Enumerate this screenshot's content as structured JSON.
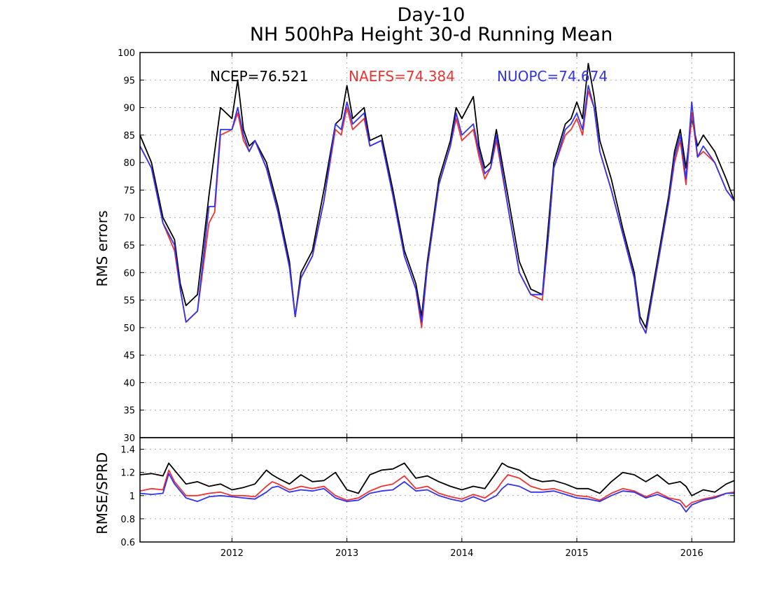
{
  "title_line1": "Day-10",
  "title_line2": "NH 500hPa Height 30-d Running Mean",
  "chart_data": [
    {
      "type": "line",
      "ylabel": "RMS errors",
      "ylim": [
        30,
        100
      ],
      "yticks": [
        30,
        35,
        40,
        45,
        50,
        55,
        60,
        65,
        70,
        75,
        80,
        85,
        90,
        95,
        100
      ],
      "xlim": [
        2011.2,
        2016.37
      ],
      "xticks": [
        2012,
        2013,
        2014,
        2015,
        2016
      ],
      "xtick_labels": [
        "2012",
        "2013",
        "2014",
        "2015",
        "2016"
      ],
      "grid": true,
      "x": [
        2011.2,
        2011.3,
        2011.4,
        2011.5,
        2011.55,
        2011.6,
        2011.7,
        2011.8,
        2011.85,
        2011.9,
        2012.0,
        2012.05,
        2012.1,
        2012.15,
        2012.2,
        2012.3,
        2012.4,
        2012.5,
        2012.55,
        2012.6,
        2012.7,
        2012.8,
        2012.9,
        2012.95,
        2013.0,
        2013.05,
        2013.15,
        2013.2,
        2013.3,
        2013.4,
        2013.5,
        2013.6,
        2013.65,
        2013.7,
        2013.8,
        2013.9,
        2013.95,
        2014.0,
        2014.1,
        2014.15,
        2014.2,
        2014.25,
        2014.3,
        2014.4,
        2014.5,
        2014.6,
        2014.7,
        2014.75,
        2014.8,
        2014.9,
        2014.95,
        2015.0,
        2015.05,
        2015.1,
        2015.15,
        2015.2,
        2015.3,
        2015.4,
        2015.5,
        2015.55,
        2015.6,
        2015.7,
        2015.8,
        2015.85,
        2015.9,
        2015.95,
        2016.0,
        2016.05,
        2016.1,
        2016.2,
        2016.3,
        2016.37
      ],
      "series": [
        {
          "name": "NCEP",
          "label": "NCEP=76.521",
          "color": "#000000",
          "values": [
            85,
            80,
            70,
            66,
            58,
            54,
            56,
            74,
            82,
            90,
            88,
            95,
            86,
            83,
            84,
            80,
            72,
            62,
            52,
            60,
            64,
            75,
            87,
            88,
            94,
            88,
            90,
            84,
            85,
            75,
            64,
            58,
            52,
            62,
            77,
            84,
            90,
            88,
            92,
            83,
            79,
            80,
            86,
            74,
            62,
            57,
            56,
            68,
            80,
            87,
            88,
            91,
            88,
            98,
            92,
            84,
            77,
            68,
            60,
            52,
            50,
            62,
            74,
            82,
            86,
            79,
            88,
            83,
            85,
            82,
            77,
            73
          ]
        },
        {
          "name": "NAEFS",
          "label": "NAEFS=74.384",
          "color": "#ee3333",
          "values": [
            83,
            79,
            69,
            64,
            57,
            51,
            53,
            69,
            71,
            85,
            86,
            89,
            84,
            82,
            84,
            79,
            71,
            61,
            52,
            59,
            63,
            73,
            86,
            85,
            90,
            86,
            88,
            83,
            84,
            74,
            63,
            57,
            50,
            61,
            76,
            83,
            88,
            84,
            86,
            81,
            77,
            79,
            84,
            72,
            60,
            56,
            55,
            66,
            79,
            85,
            86,
            88,
            85,
            93,
            90,
            82,
            75,
            67,
            59,
            51,
            49,
            61,
            73,
            80,
            84,
            76,
            89,
            81,
            82,
            80,
            75,
            73
          ]
        },
        {
          "name": "NUOPC",
          "label": "NUOPC=74.674",
          "color": "#3333ee",
          "values": [
            83,
            79,
            69,
            65,
            57,
            51,
            53,
            72,
            72,
            86,
            86,
            90,
            85,
            82,
            84,
            79,
            71,
            61,
            52,
            59,
            63,
            73,
            87,
            86,
            91,
            87,
            89,
            83,
            84,
            74,
            63,
            57,
            51,
            61,
            76,
            83,
            89,
            85,
            87,
            82,
            78,
            79,
            85,
            72,
            60,
            56,
            56,
            66,
            79,
            86,
            87,
            89,
            86,
            94,
            90,
            82,
            75,
            67,
            59,
            51,
            49,
            61,
            73,
            81,
            85,
            77,
            91,
            81,
            83,
            80,
            75,
            73
          ]
        }
      ]
    },
    {
      "type": "line",
      "ylabel": "RMSE/SPRD",
      "ylim": [
        0.6,
        1.5
      ],
      "yticks": [
        0.6,
        0.8,
        1,
        1.2,
        1.4
      ],
      "ytick_labels": [
        "0.6",
        "0.8",
        "1",
        "1.2",
        "1.4"
      ],
      "xlim": [
        2011.2,
        2016.37
      ],
      "xticks": [
        2012,
        2013,
        2014,
        2015,
        2016
      ],
      "xtick_labels": [
        "2012",
        "2013",
        "2014",
        "2015",
        "2016"
      ],
      "grid": true,
      "x": [
        2011.2,
        2011.3,
        2011.4,
        2011.45,
        2011.5,
        2011.6,
        2011.7,
        2011.8,
        2011.9,
        2012.0,
        2012.1,
        2012.2,
        2012.3,
        2012.35,
        2012.4,
        2012.5,
        2012.6,
        2012.7,
        2012.8,
        2012.9,
        2013.0,
        2013.1,
        2013.2,
        2013.3,
        2013.4,
        2013.5,
        2013.6,
        2013.7,
        2013.8,
        2013.9,
        2014.0,
        2014.1,
        2014.2,
        2014.3,
        2014.35,
        2014.4,
        2014.5,
        2014.6,
        2014.7,
        2014.8,
        2014.9,
        2015.0,
        2015.1,
        2015.2,
        2015.3,
        2015.4,
        2015.5,
        2015.6,
        2015.7,
        2015.8,
        2015.9,
        2015.95,
        2016.0,
        2016.1,
        2016.2,
        2016.3,
        2016.37
      ],
      "series": [
        {
          "name": "NCEP",
          "color": "#000000",
          "values": [
            1.18,
            1.19,
            1.17,
            1.28,
            1.22,
            1.1,
            1.12,
            1.08,
            1.1,
            1.05,
            1.07,
            1.1,
            1.22,
            1.18,
            1.15,
            1.1,
            1.18,
            1.12,
            1.13,
            1.2,
            1.05,
            1.02,
            1.18,
            1.22,
            1.23,
            1.28,
            1.15,
            1.17,
            1.12,
            1.08,
            1.05,
            1.08,
            1.06,
            1.2,
            1.28,
            1.25,
            1.22,
            1.15,
            1.12,
            1.13,
            1.1,
            1.06,
            1.06,
            1.02,
            1.12,
            1.2,
            1.18,
            1.12,
            1.18,
            1.1,
            1.12,
            1.08,
            1.0,
            1.05,
            1.03,
            1.1,
            1.13
          ]
        },
        {
          "name": "NAEFS",
          "color": "#ee3333",
          "values": [
            1.04,
            1.06,
            1.05,
            1.22,
            1.12,
            1.0,
            1.0,
            1.02,
            1.03,
            1.0,
            1.0,
            0.99,
            1.08,
            1.12,
            1.1,
            1.05,
            1.08,
            1.06,
            1.08,
            1.0,
            0.96,
            0.98,
            1.04,
            1.08,
            1.1,
            1.17,
            1.06,
            1.08,
            1.02,
            0.99,
            0.97,
            1.01,
            0.98,
            1.05,
            1.12,
            1.18,
            1.15,
            1.08,
            1.05,
            1.06,
            1.03,
            1.0,
            0.99,
            0.96,
            1.02,
            1.06,
            1.04,
            0.99,
            1.03,
            0.98,
            0.96,
            0.9,
            0.94,
            0.97,
            0.99,
            1.02,
            1.03
          ]
        },
        {
          "name": "NUOPC",
          "color": "#3333ee",
          "values": [
            1.02,
            1.01,
            1.02,
            1.19,
            1.1,
            0.98,
            0.95,
            0.99,
            1.0,
            0.99,
            0.98,
            0.97,
            1.03,
            1.07,
            1.08,
            1.03,
            1.05,
            1.04,
            1.06,
            0.98,
            0.95,
            0.96,
            1.02,
            1.04,
            1.05,
            1.12,
            1.04,
            1.05,
            1.0,
            0.97,
            0.95,
            0.99,
            0.95,
            1.0,
            1.06,
            1.1,
            1.08,
            1.03,
            1.03,
            1.04,
            1.01,
            0.98,
            0.97,
            0.95,
            1.0,
            1.04,
            1.03,
            0.98,
            1.01,
            0.97,
            0.93,
            0.86,
            0.92,
            0.96,
            0.98,
            1.02,
            1.02
          ]
        }
      ]
    }
  ]
}
